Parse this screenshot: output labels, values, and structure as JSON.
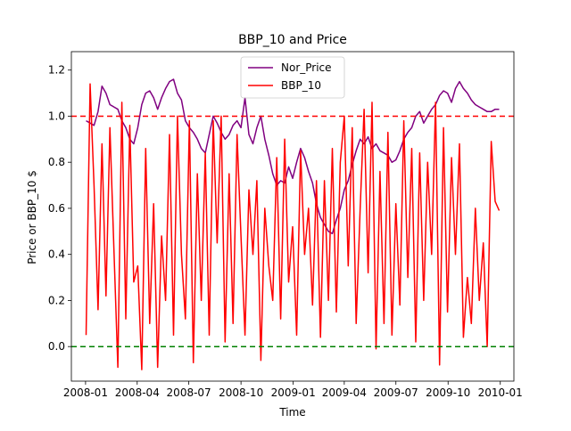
{
  "chart_data": {
    "type": "line",
    "title": "BBP_10 and Price",
    "xlabel": "Time",
    "ylabel": "Price or BBP_10 $",
    "xlim": [
      "2007-12-07",
      "2010-01-25"
    ],
    "ylim": [
      -0.15,
      1.28
    ],
    "x_ticks": [
      "2008-01",
      "2008-04",
      "2008-07",
      "2008-10",
      "2009-01",
      "2009-04",
      "2009-07",
      "2009-10",
      "2010-01"
    ],
    "y_ticks": [
      "0.0",
      "0.2",
      "0.4",
      "0.6",
      "0.8",
      "1.0",
      "1.2"
    ],
    "legend_position": "top-center",
    "reference_lines": [
      {
        "y": 1.0,
        "color": "#ff0000",
        "style": "dashed"
      },
      {
        "y": 0.0,
        "color": "#008000",
        "style": "dashed"
      }
    ],
    "series": [
      {
        "name": "Nor_Price",
        "color": "#800080",
        "x": [
          "2008-01-02",
          "2008-01-09",
          "2008-01-16",
          "2008-01-23",
          "2008-01-30",
          "2008-02-06",
          "2008-02-13",
          "2008-02-20",
          "2008-02-27",
          "2008-03-05",
          "2008-03-12",
          "2008-03-19",
          "2008-03-26",
          "2008-04-02",
          "2008-04-09",
          "2008-04-16",
          "2008-04-23",
          "2008-04-30",
          "2008-05-07",
          "2008-05-14",
          "2008-05-21",
          "2008-05-28",
          "2008-06-04",
          "2008-06-11",
          "2008-06-18",
          "2008-06-25",
          "2008-07-02",
          "2008-07-09",
          "2008-07-16",
          "2008-07-23",
          "2008-07-30",
          "2008-08-06",
          "2008-08-13",
          "2008-08-20",
          "2008-08-27",
          "2008-09-03",
          "2008-09-10",
          "2008-09-17",
          "2008-09-24",
          "2008-10-01",
          "2008-10-08",
          "2008-10-15",
          "2008-10-22",
          "2008-10-29",
          "2008-11-05",
          "2008-11-12",
          "2008-11-19",
          "2008-11-26",
          "2008-12-03",
          "2008-12-10",
          "2008-12-17",
          "2008-12-24",
          "2008-12-31",
          "2009-01-07",
          "2009-01-14",
          "2009-01-21",
          "2009-01-28",
          "2009-02-04",
          "2009-02-11",
          "2009-02-18",
          "2009-02-25",
          "2009-03-04",
          "2009-03-11",
          "2009-03-18",
          "2009-03-25",
          "2009-04-01",
          "2009-04-08",
          "2009-04-15",
          "2009-04-22",
          "2009-04-29",
          "2009-05-06",
          "2009-05-13",
          "2009-05-20",
          "2009-05-27",
          "2009-06-03",
          "2009-06-10",
          "2009-06-17",
          "2009-06-24",
          "2009-07-01",
          "2009-07-08",
          "2009-07-15",
          "2009-07-22",
          "2009-07-29",
          "2009-08-05",
          "2009-08-12",
          "2009-08-19",
          "2009-08-26",
          "2009-09-02",
          "2009-09-09",
          "2009-09-16",
          "2009-09-23",
          "2009-09-30",
          "2009-10-07",
          "2009-10-14",
          "2009-10-21",
          "2009-10-28",
          "2009-11-04",
          "2009-11-11",
          "2009-11-18",
          "2009-11-25",
          "2009-12-02",
          "2009-12-09",
          "2009-12-16",
          "2009-12-23",
          "2009-12-30"
        ],
        "values": [
          0.98,
          0.97,
          0.96,
          1.02,
          1.13,
          1.1,
          1.05,
          1.04,
          1.03,
          0.98,
          0.95,
          0.9,
          0.88,
          0.95,
          1.05,
          1.1,
          1.11,
          1.08,
          1.03,
          1.08,
          1.12,
          1.15,
          1.16,
          1.1,
          1.07,
          0.98,
          0.95,
          0.93,
          0.9,
          0.86,
          0.84,
          0.92,
          1.0,
          0.97,
          0.93,
          0.9,
          0.92,
          0.96,
          0.98,
          0.95,
          1.08,
          0.92,
          0.88,
          0.95,
          1.0,
          0.9,
          0.83,
          0.75,
          0.7,
          0.72,
          0.71,
          0.78,
          0.73,
          0.8,
          0.86,
          0.82,
          0.76,
          0.71,
          0.62,
          0.56,
          0.53,
          0.5,
          0.49,
          0.55,
          0.6,
          0.68,
          0.72,
          0.79,
          0.85,
          0.9,
          0.88,
          0.91,
          0.86,
          0.88,
          0.85,
          0.84,
          0.83,
          0.8,
          0.81,
          0.85,
          0.9,
          0.93,
          0.95,
          1.0,
          1.02,
          0.97,
          1.0,
          1.03,
          1.05,
          1.09,
          1.11,
          1.1,
          1.06,
          1.12,
          1.15,
          1.12,
          1.1,
          1.07,
          1.05,
          1.04,
          1.03,
          1.02,
          1.02,
          1.03,
          1.03
        ]
      },
      {
        "name": "BBP_10",
        "color": "#ff0000",
        "x": [
          "2008-01-02",
          "2008-01-09",
          "2008-01-16",
          "2008-01-23",
          "2008-01-30",
          "2008-02-06",
          "2008-02-13",
          "2008-02-20",
          "2008-02-27",
          "2008-03-05",
          "2008-03-12",
          "2008-03-19",
          "2008-03-26",
          "2008-04-02",
          "2008-04-09",
          "2008-04-16",
          "2008-04-23",
          "2008-04-30",
          "2008-05-07",
          "2008-05-14",
          "2008-05-21",
          "2008-05-28",
          "2008-06-04",
          "2008-06-11",
          "2008-06-18",
          "2008-06-25",
          "2008-07-02",
          "2008-07-09",
          "2008-07-16",
          "2008-07-23",
          "2008-07-30",
          "2008-08-06",
          "2008-08-13",
          "2008-08-20",
          "2008-08-27",
          "2008-09-03",
          "2008-09-10",
          "2008-09-17",
          "2008-09-24",
          "2008-10-01",
          "2008-10-08",
          "2008-10-15",
          "2008-10-22",
          "2008-10-29",
          "2008-11-05",
          "2008-11-12",
          "2008-11-19",
          "2008-11-26",
          "2008-12-03",
          "2008-12-10",
          "2008-12-17",
          "2008-12-24",
          "2008-12-31",
          "2009-01-07",
          "2009-01-14",
          "2009-01-21",
          "2009-01-28",
          "2009-02-04",
          "2009-02-11",
          "2009-02-18",
          "2009-02-25",
          "2009-03-04",
          "2009-03-11",
          "2009-03-18",
          "2009-03-25",
          "2009-04-01",
          "2009-04-08",
          "2009-04-15",
          "2009-04-22",
          "2009-04-29",
          "2009-05-06",
          "2009-05-13",
          "2009-05-20",
          "2009-05-27",
          "2009-06-03",
          "2009-06-10",
          "2009-06-17",
          "2009-06-24",
          "2009-07-01",
          "2009-07-08",
          "2009-07-15",
          "2009-07-22",
          "2009-07-29",
          "2009-08-05",
          "2009-08-12",
          "2009-08-19",
          "2009-08-26",
          "2009-09-02",
          "2009-09-09",
          "2009-09-16",
          "2009-09-23",
          "2009-09-30",
          "2009-10-07",
          "2009-10-14",
          "2009-10-21",
          "2009-10-28",
          "2009-11-04",
          "2009-11-11",
          "2009-11-18",
          "2009-11-25",
          "2009-12-02",
          "2009-12-09",
          "2009-12-16",
          "2009-12-23",
          "2009-12-30"
        ],
        "values": [
          0.05,
          1.14,
          0.7,
          0.16,
          0.88,
          0.22,
          0.95,
          0.42,
          -0.09,
          1.06,
          0.12,
          0.96,
          0.28,
          0.35,
          -0.1,
          0.86,
          0.1,
          0.62,
          -0.09,
          0.48,
          0.2,
          0.92,
          0.05,
          1.0,
          0.4,
          0.12,
          0.98,
          -0.07,
          0.75,
          0.2,
          0.84,
          0.05,
          0.98,
          0.45,
          1.0,
          0.02,
          0.75,
          0.1,
          0.92,
          0.48,
          0.05,
          0.68,
          0.4,
          0.72,
          -0.06,
          0.6,
          0.35,
          0.2,
          0.82,
          0.12,
          0.9,
          0.28,
          0.52,
          0.05,
          0.85,
          0.4,
          0.6,
          0.18,
          0.72,
          0.04,
          0.72,
          0.2,
          0.86,
          0.15,
          0.8,
          1.0,
          0.35,
          0.95,
          0.1,
          0.6,
          1.03,
          0.32,
          1.06,
          -0.01,
          0.76,
          0.1,
          0.93,
          0.05,
          0.62,
          0.18,
          0.98,
          0.3,
          0.86,
          0.02,
          0.84,
          0.2,
          0.8,
          0.4,
          1.06,
          -0.08,
          0.95,
          0.15,
          0.82,
          0.4,
          0.88,
          0.04,
          0.3,
          0.1,
          0.6,
          0.2,
          0.45,
          0.0,
          0.89,
          0.63,
          0.59
        ]
      }
    ]
  }
}
